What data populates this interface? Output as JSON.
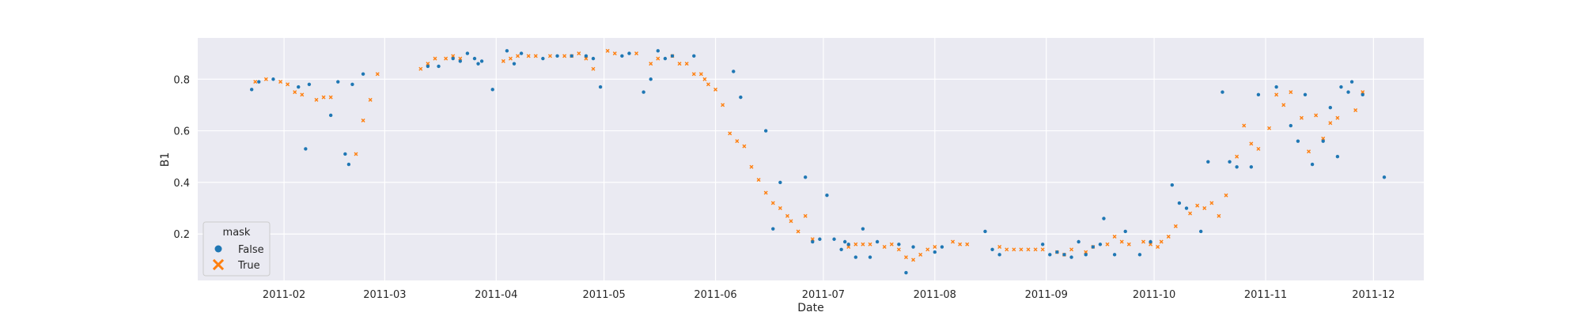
{
  "chart_data": {
    "type": "scatter",
    "xlabel": "Date",
    "ylabel": "B1",
    "xlim": [
      "2011-01-08",
      "2011-12-15"
    ],
    "ylim": [
      0.02,
      0.96
    ],
    "x_ticks": [
      "2011-02-01",
      "2011-03-01",
      "2011-04-01",
      "2011-05-01",
      "2011-06-01",
      "2011-07-01",
      "2011-08-01",
      "2011-09-01",
      "2011-10-01",
      "2011-11-01",
      "2011-12-01"
    ],
    "x_tick_labels": [
      "2011-02",
      "2011-03",
      "2011-04",
      "2011-05",
      "2011-06",
      "2011-07",
      "2011-08",
      "2011-09",
      "2011-10",
      "2011-11",
      "2011-12"
    ],
    "y_ticks": [
      0.2,
      0.4,
      0.6,
      0.8
    ],
    "y_tick_labels": [
      "0.2",
      "0.4",
      "0.6",
      "0.8"
    ],
    "grid": true,
    "legend": {
      "title": "mask",
      "position": "lower-left",
      "entries": [
        {
          "label": "False",
          "marker": "circle",
          "color": "#1f77b4"
        },
        {
          "label": "True",
          "marker": "x",
          "color": "#ff7f0e"
        }
      ]
    },
    "colors": {
      "background": "#eaeaf2",
      "grid": "#ffffff",
      "false": "#1f77b4",
      "true": "#ff7f0e"
    },
    "series": [
      {
        "name": "False",
        "x": [
          "2011-01-23",
          "2011-01-25",
          "2011-01-29",
          "2011-02-05",
          "2011-02-07",
          "2011-02-08",
          "2011-02-14",
          "2011-02-16",
          "2011-02-18",
          "2011-02-19",
          "2011-02-20",
          "2011-02-23",
          "2011-03-13",
          "2011-03-16",
          "2011-03-20",
          "2011-03-22",
          "2011-03-24",
          "2011-03-26",
          "2011-03-27",
          "2011-03-28",
          "2011-03-31",
          "2011-04-04",
          "2011-04-06",
          "2011-04-08",
          "2011-04-14",
          "2011-04-18",
          "2011-04-22",
          "2011-04-26",
          "2011-04-28",
          "2011-04-30",
          "2011-05-06",
          "2011-05-08",
          "2011-05-12",
          "2011-05-14",
          "2011-05-16",
          "2011-05-18",
          "2011-05-20",
          "2011-05-26",
          "2011-06-06",
          "2011-06-08",
          "2011-06-15",
          "2011-06-17",
          "2011-06-19",
          "2011-06-26",
          "2011-06-28",
          "2011-06-30",
          "2011-07-02",
          "2011-07-04",
          "2011-07-06",
          "2011-07-07",
          "2011-07-08",
          "2011-07-10",
          "2011-07-12",
          "2011-07-14",
          "2011-07-16",
          "2011-07-22",
          "2011-07-24",
          "2011-07-26",
          "2011-08-01",
          "2011-08-03",
          "2011-08-15",
          "2011-08-17",
          "2011-08-19",
          "2011-08-31",
          "2011-09-02",
          "2011-09-04",
          "2011-09-06",
          "2011-09-08",
          "2011-09-10",
          "2011-09-12",
          "2011-09-14",
          "2011-09-16",
          "2011-09-17",
          "2011-09-20",
          "2011-09-23",
          "2011-09-27",
          "2011-09-30",
          "2011-10-06",
          "2011-10-08",
          "2011-10-10",
          "2011-10-14",
          "2011-10-16",
          "2011-10-20",
          "2011-10-22",
          "2011-10-24",
          "2011-10-28",
          "2011-10-30",
          "2011-11-04",
          "2011-11-08",
          "2011-11-10",
          "2011-11-12",
          "2011-11-14",
          "2011-11-17",
          "2011-11-19",
          "2011-11-21",
          "2011-11-22",
          "2011-11-24",
          "2011-11-25",
          "2011-11-28",
          "2011-12-04"
        ],
        "y": [
          0.76,
          0.79,
          0.8,
          0.77,
          0.53,
          0.78,
          0.66,
          0.79,
          0.51,
          0.47,
          0.78,
          0.82,
          0.85,
          0.85,
          0.88,
          0.87,
          0.9,
          0.88,
          0.86,
          0.87,
          0.76,
          0.91,
          0.86,
          0.9,
          0.88,
          0.89,
          0.89,
          0.89,
          0.88,
          0.77,
          0.89,
          0.9,
          0.75,
          0.8,
          0.91,
          0.88,
          0.89,
          0.89,
          0.83,
          0.73,
          0.6,
          0.22,
          0.4,
          0.42,
          0.17,
          0.18,
          0.35,
          0.18,
          0.14,
          0.17,
          0.16,
          0.11,
          0.22,
          0.11,
          0.17,
          0.16,
          0.05,
          0.15,
          0.13,
          0.15,
          0.21,
          0.14,
          0.12,
          0.16,
          0.12,
          0.13,
          0.12,
          0.11,
          0.17,
          0.12,
          0.15,
          0.16,
          0.26,
          0.12,
          0.21,
          0.12,
          0.17,
          0.39,
          0.32,
          0.3,
          0.21,
          0.48,
          0.75,
          0.48,
          0.46,
          0.46,
          0.74,
          0.77,
          0.62,
          0.56,
          0.74,
          0.47,
          0.56,
          0.69,
          0.5,
          0.77,
          0.75,
          0.79,
          0.74,
          0.42
        ]
      },
      {
        "name": "True",
        "x": [
          "2011-01-24",
          "2011-01-27",
          "2011-01-31",
          "2011-02-02",
          "2011-02-04",
          "2011-02-06",
          "2011-02-10",
          "2011-02-12",
          "2011-02-14",
          "2011-02-21",
          "2011-02-23",
          "2011-02-25",
          "2011-02-27",
          "2011-03-11",
          "2011-03-13",
          "2011-03-15",
          "2011-03-18",
          "2011-03-20",
          "2011-03-22",
          "2011-04-03",
          "2011-04-05",
          "2011-04-07",
          "2011-04-10",
          "2011-04-12",
          "2011-04-16",
          "2011-04-20",
          "2011-04-22",
          "2011-04-24",
          "2011-04-26",
          "2011-04-28",
          "2011-05-02",
          "2011-05-04",
          "2011-05-10",
          "2011-05-14",
          "2011-05-16",
          "2011-05-20",
          "2011-05-22",
          "2011-05-24",
          "2011-05-26",
          "2011-05-28",
          "2011-05-29",
          "2011-05-30",
          "2011-06-01",
          "2011-06-03",
          "2011-06-05",
          "2011-06-07",
          "2011-06-09",
          "2011-06-11",
          "2011-06-13",
          "2011-06-15",
          "2011-06-17",
          "2011-06-19",
          "2011-06-21",
          "2011-06-22",
          "2011-06-24",
          "2011-06-26",
          "2011-06-28",
          "2011-07-08",
          "2011-07-10",
          "2011-07-12",
          "2011-07-14",
          "2011-07-18",
          "2011-07-20",
          "2011-07-22",
          "2011-07-24",
          "2011-07-26",
          "2011-07-28",
          "2011-07-30",
          "2011-08-01",
          "2011-08-06",
          "2011-08-08",
          "2011-08-10",
          "2011-08-19",
          "2011-08-21",
          "2011-08-23",
          "2011-08-25",
          "2011-08-27",
          "2011-08-29",
          "2011-08-31",
          "2011-09-04",
          "2011-09-06",
          "2011-09-08",
          "2011-09-12",
          "2011-09-14",
          "2011-09-18",
          "2011-09-20",
          "2011-09-22",
          "2011-09-24",
          "2011-09-28",
          "2011-09-30",
          "2011-10-02",
          "2011-10-03",
          "2011-10-05",
          "2011-10-07",
          "2011-10-11",
          "2011-10-13",
          "2011-10-15",
          "2011-10-17",
          "2011-10-19",
          "2011-10-21",
          "2011-10-24",
          "2011-10-26",
          "2011-10-28",
          "2011-10-30",
          "2011-11-02",
          "2011-11-04",
          "2011-11-06",
          "2011-11-08",
          "2011-11-11",
          "2011-11-13",
          "2011-11-15",
          "2011-11-17",
          "2011-11-19",
          "2011-11-21",
          "2011-11-26",
          "2011-11-28"
        ],
        "y": [
          0.79,
          0.8,
          0.79,
          0.78,
          0.75,
          0.74,
          0.72,
          0.73,
          0.73,
          0.51,
          0.64,
          0.72,
          0.82,
          0.84,
          0.86,
          0.88,
          0.88,
          0.89,
          0.88,
          0.87,
          0.88,
          0.89,
          0.89,
          0.89,
          0.89,
          0.89,
          0.89,
          0.9,
          0.88,
          0.84,
          0.91,
          0.9,
          0.9,
          0.86,
          0.88,
          0.89,
          0.86,
          0.86,
          0.82,
          0.82,
          0.8,
          0.78,
          0.76,
          0.7,
          0.59,
          0.56,
          0.54,
          0.46,
          0.41,
          0.36,
          0.32,
          0.3,
          0.27,
          0.25,
          0.21,
          0.27,
          0.18,
          0.15,
          0.16,
          0.16,
          0.16,
          0.15,
          0.16,
          0.14,
          0.11,
          0.1,
          0.12,
          0.14,
          0.15,
          0.17,
          0.16,
          0.16,
          0.15,
          0.14,
          0.14,
          0.14,
          0.14,
          0.14,
          0.14,
          0.13,
          0.12,
          0.14,
          0.13,
          0.15,
          0.16,
          0.19,
          0.17,
          0.16,
          0.17,
          0.16,
          0.15,
          0.17,
          0.19,
          0.23,
          0.28,
          0.31,
          0.3,
          0.32,
          0.27,
          0.35,
          0.5,
          0.62,
          0.55,
          0.53,
          0.61,
          0.74,
          0.7,
          0.75,
          0.65,
          0.52,
          0.66,
          0.57,
          0.63,
          0.65,
          0.68,
          0.75
        ]
      }
    ]
  }
}
